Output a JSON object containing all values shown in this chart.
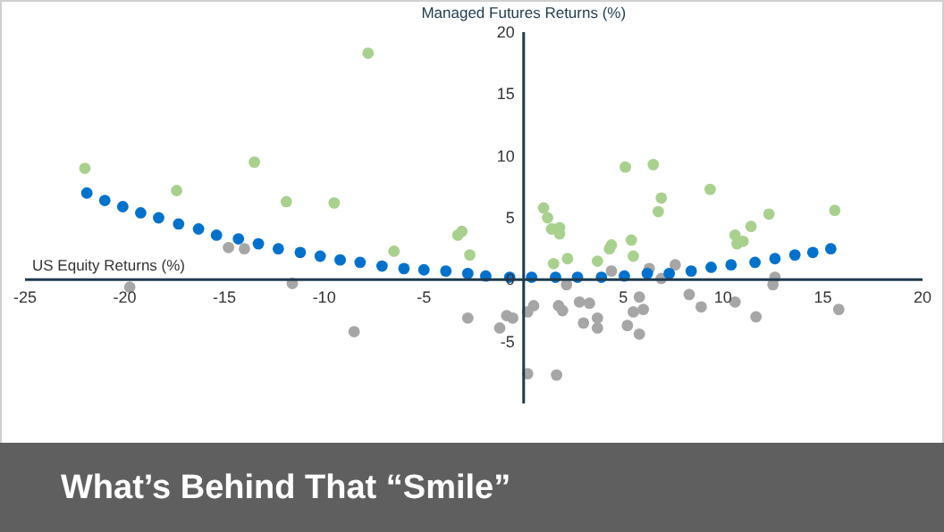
{
  "chart_data": {
    "type": "scatter",
    "title": "What’s Behind That “Smile”",
    "xlabel": "US Equity Returns (%)",
    "ylabel": "Managed Futures Returns (%)",
    "xlim": [
      -25,
      20
    ],
    "xticks": [
      -25,
      -20,
      -15,
      -10,
      -5,
      5,
      10,
      15,
      20
    ],
    "ylim": [
      -10,
      20
    ],
    "yticks": [
      -5,
      0,
      5,
      10,
      15,
      20
    ],
    "grid": false,
    "marker": "circle",
    "series": [
      {
        "color": "#a9d18e",
        "x": [
          -22.0,
          -17.4,
          -13.5,
          -11.9,
          -9.5,
          -7.8,
          -6.5,
          -3.3,
          -3.1,
          -2.7,
          1.0,
          1.2,
          1.4,
          1.8,
          1.8,
          1.5,
          2.2,
          3.7,
          4.3,
          4.4,
          5.1,
          5.4,
          5.5,
          6.5,
          6.75,
          6.9,
          9.35,
          10.6,
          10.7,
          11.0,
          11.4,
          12.3,
          15.6
        ],
        "values": [
          9.0,
          7.2,
          9.5,
          6.3,
          6.2,
          18.3,
          2.3,
          3.6,
          3.9,
          2.0,
          5.8,
          5.0,
          4.1,
          4.2,
          3.7,
          1.3,
          1.7,
          1.5,
          2.5,
          2.8,
          9.1,
          3.2,
          1.9,
          9.3,
          5.5,
          6.6,
          7.3,
          3.6,
          2.9,
          3.1,
          4.3,
          5.3,
          5.6
        ]
      },
      {
        "color": "#a6a6a6",
        "x": [
          -14.8,
          -14.0,
          -19.75,
          -11.6,
          -8.5,
          -2.8,
          -1.2,
          -0.85,
          -0.55,
          0.2,
          0.5,
          0.2,
          1.65,
          1.75,
          1.95,
          2.15,
          2.8,
          3.3,
          3.0,
          3.7,
          3.7,
          4.4,
          5.2,
          5.8,
          5.5,
          6.0,
          5.8,
          6.3,
          6.9,
          7.6,
          8.3,
          8.9,
          10.6,
          11.65,
          12.5,
          12.6,
          15.8
        ],
        "values": [
          2.6,
          2.5,
          -0.6,
          -0.3,
          -4.2,
          -3.1,
          -3.9,
          -2.9,
          -3.1,
          -2.6,
          -2.1,
          -7.6,
          -7.7,
          -2.1,
          -2.5,
          -0.4,
          -1.8,
          -1.9,
          -3.5,
          -3.1,
          -3.9,
          0.7,
          -3.7,
          -1.4,
          -2.6,
          -2.4,
          -4.4,
          0.9,
          0.1,
          1.2,
          -1.2,
          -2.2,
          -1.8,
          -3.0,
          -0.4,
          0.2,
          -2.4
        ]
      },
      {
        "color": "#0072ce",
        "x": [
          -21.9,
          -21.0,
          -20.1,
          -19.2,
          -18.3,
          -17.3,
          -16.3,
          -15.4,
          -14.3,
          -13.3,
          -12.3,
          -11.2,
          -10.2,
          -9.2,
          -8.2,
          -7.1,
          -6.0,
          -5.0,
          -3.9,
          -2.8,
          -1.9,
          -0.7,
          0.4,
          1.6,
          2.7,
          3.9,
          5.05,
          6.2,
          7.3,
          8.4,
          9.4,
          10.4,
          11.6,
          12.6,
          13.6,
          14.5,
          15.4
        ],
        "values": [
          7.0,
          6.4,
          5.9,
          5.4,
          5.0,
          4.5,
          4.1,
          3.6,
          3.3,
          2.9,
          2.5,
          2.2,
          1.9,
          1.6,
          1.4,
          1.1,
          0.9,
          0.8,
          0.7,
          0.5,
          0.3,
          0.2,
          0.2,
          0.2,
          0.2,
          0.2,
          0.3,
          0.5,
          0.5,
          0.7,
          1.0,
          1.2,
          1.4,
          1.7,
          2.0,
          2.2,
          2.5
        ]
      }
    ]
  }
}
